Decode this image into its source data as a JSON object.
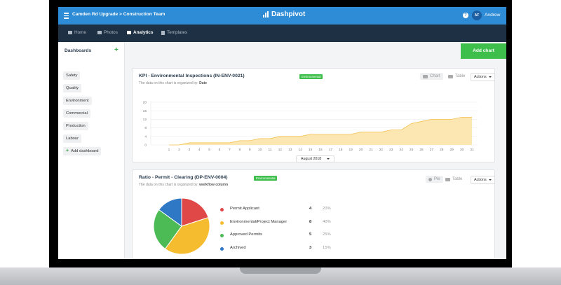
{
  "topbar": {
    "project_title": "Camden Rd Upgrade > Construction Team",
    "brand": "Dashpivot",
    "help": "?",
    "avatar_initials": "AF",
    "user_name": "Andrew"
  },
  "nav": {
    "items": [
      {
        "label": "Home"
      },
      {
        "label": "Photos"
      },
      {
        "label": "Analytics"
      },
      {
        "label": "Templates"
      }
    ],
    "active": "Analytics"
  },
  "sidebar": {
    "heading": "Dashboards",
    "items": [
      {
        "label": "Safety"
      },
      {
        "label": "Quality"
      },
      {
        "label": "Environment"
      },
      {
        "label": "Commercial"
      },
      {
        "label": "Production"
      },
      {
        "label": "Labour"
      }
    ],
    "add_label": "Add dashboard"
  },
  "add_chart_label": "Add chart",
  "card1": {
    "title": "KPI - Environmental Inspections (IN-ENV-0021)",
    "badge": "Environmental",
    "subtitle_prefix": "The data on this chart is organized by:",
    "subtitle_field": "Date",
    "chart_btn": "Chart",
    "table_btn": "Table",
    "actions": "Actions",
    "month": "August 2018"
  },
  "card2": {
    "title": "Ratio - Permit - Clearing (DP-ENV-0004)",
    "badge": "Environmental",
    "subtitle_prefix": "The data on this chart is organized by:",
    "subtitle_field": "workflow column",
    "pie_btn": "Pie",
    "table_btn": "Table",
    "actions": "Actions"
  },
  "colors": {
    "accent": "#2e8bd5",
    "nav_bg": "#1e3044",
    "green": "#3ebf4c",
    "area_fill": "#fbe3a6",
    "area_line": "#f3c04d"
  },
  "chart_data": [
    {
      "type": "area",
      "x": [
        1,
        2,
        3,
        4,
        5,
        6,
        7,
        8,
        9,
        10,
        11,
        12,
        13,
        14,
        15,
        16,
        17,
        18,
        19,
        20,
        21,
        22,
        23,
        24,
        25,
        26,
        27,
        28,
        29,
        30,
        31
      ],
      "series": [
        {
          "values": [
            0,
            0,
            1,
            1,
            1,
            1,
            1,
            2,
            2,
            3,
            3,
            4,
            4,
            4,
            5,
            5,
            5,
            5,
            5,
            6,
            6,
            6,
            7,
            7,
            10,
            11,
            12,
            12,
            12,
            13,
            13
          ]
        }
      ],
      "ylim": [
        0,
        20
      ],
      "yticks": [
        0,
        4,
        8,
        12,
        16,
        20
      ],
      "grid": true
    },
    {
      "type": "pie",
      "slices": [
        {
          "label": "Permit Applicant",
          "value": 4,
          "percent": "20%",
          "color": "#e04848"
        },
        {
          "label": "Environmental/Project  Manager",
          "value": 8,
          "percent": "40%",
          "color": "#f5bc2f"
        },
        {
          "label": "Approved Permits",
          "value": 5,
          "percent": "25%",
          "color": "#4cbb55"
        },
        {
          "label": "Archived",
          "value": 3,
          "percent": "15%",
          "color": "#2e78c6"
        }
      ]
    }
  ]
}
